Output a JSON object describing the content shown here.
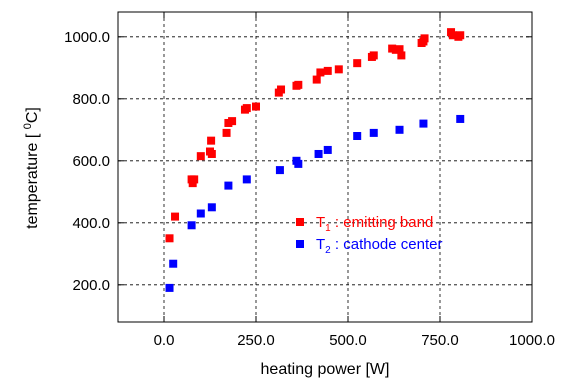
{
  "chart_data": {
    "type": "scatter",
    "title": "",
    "xlabel": "heating power [W]",
    "ylabel_main": "temperature [ ",
    "ylabel_sup": "0",
    "ylabel_end": "C]",
    "xlim": [
      -125,
      1000
    ],
    "ylim": [
      80,
      1080
    ],
    "grid": true,
    "legend_placement": "center-right",
    "x_ticks": [
      {
        "value": 0,
        "label": "0.0"
      },
      {
        "value": 250,
        "label": "250.0"
      },
      {
        "value": 500,
        "label": "500.0"
      },
      {
        "value": 750,
        "label": "750.0"
      },
      {
        "value": 1000,
        "label": "1000.0"
      }
    ],
    "y_ticks": [
      {
        "value": 200,
        "label": "200.0"
      },
      {
        "value": 400,
        "label": "400.0"
      },
      {
        "value": 600,
        "label": "600.0"
      },
      {
        "value": 800,
        "label": "800.0"
      },
      {
        "value": 1000,
        "label": "1000.0"
      }
    ],
    "series": [
      {
        "name_main": "T",
        "name_sub": "1",
        "name_rest": " : emitting band",
        "color": "#ff0000",
        "points": [
          [
            15,
            350
          ],
          [
            30,
            420
          ],
          [
            75,
            540
          ],
          [
            78,
            528
          ],
          [
            82,
            540
          ],
          [
            100,
            615
          ],
          [
            125,
            630
          ],
          [
            128,
            665
          ],
          [
            130,
            622
          ],
          [
            170,
            690
          ],
          [
            175,
            722
          ],
          [
            185,
            728
          ],
          [
            220,
            765
          ],
          [
            225,
            770
          ],
          [
            250,
            775
          ],
          [
            312,
            820
          ],
          [
            318,
            830
          ],
          [
            360,
            842
          ],
          [
            365,
            845
          ],
          [
            415,
            862
          ],
          [
            425,
            885
          ],
          [
            445,
            890
          ],
          [
            475,
            895
          ],
          [
            525,
            915
          ],
          [
            565,
            935
          ],
          [
            570,
            940
          ],
          [
            620,
            962
          ],
          [
            630,
            958
          ],
          [
            640,
            960
          ],
          [
            645,
            940
          ],
          [
            700,
            980
          ],
          [
            705,
            985
          ],
          [
            708,
            995
          ],
          [
            780,
            1015
          ],
          [
            785,
            1005
          ],
          [
            800,
            1000
          ],
          [
            805,
            1005
          ]
        ]
      },
      {
        "name_main": "T",
        "name_sub": "2",
        "name_rest": " : cathode center",
        "color": "#0000ff",
        "points": [
          [
            15,
            190
          ],
          [
            25,
            268
          ],
          [
            75,
            392
          ],
          [
            100,
            430
          ],
          [
            130,
            450
          ],
          [
            175,
            520
          ],
          [
            225,
            540
          ],
          [
            315,
            570
          ],
          [
            360,
            600
          ],
          [
            365,
            590
          ],
          [
            420,
            622
          ],
          [
            445,
            635
          ],
          [
            525,
            680
          ],
          [
            570,
            690
          ],
          [
            640,
            700
          ],
          [
            705,
            720
          ],
          [
            805,
            735
          ]
        ]
      }
    ]
  }
}
